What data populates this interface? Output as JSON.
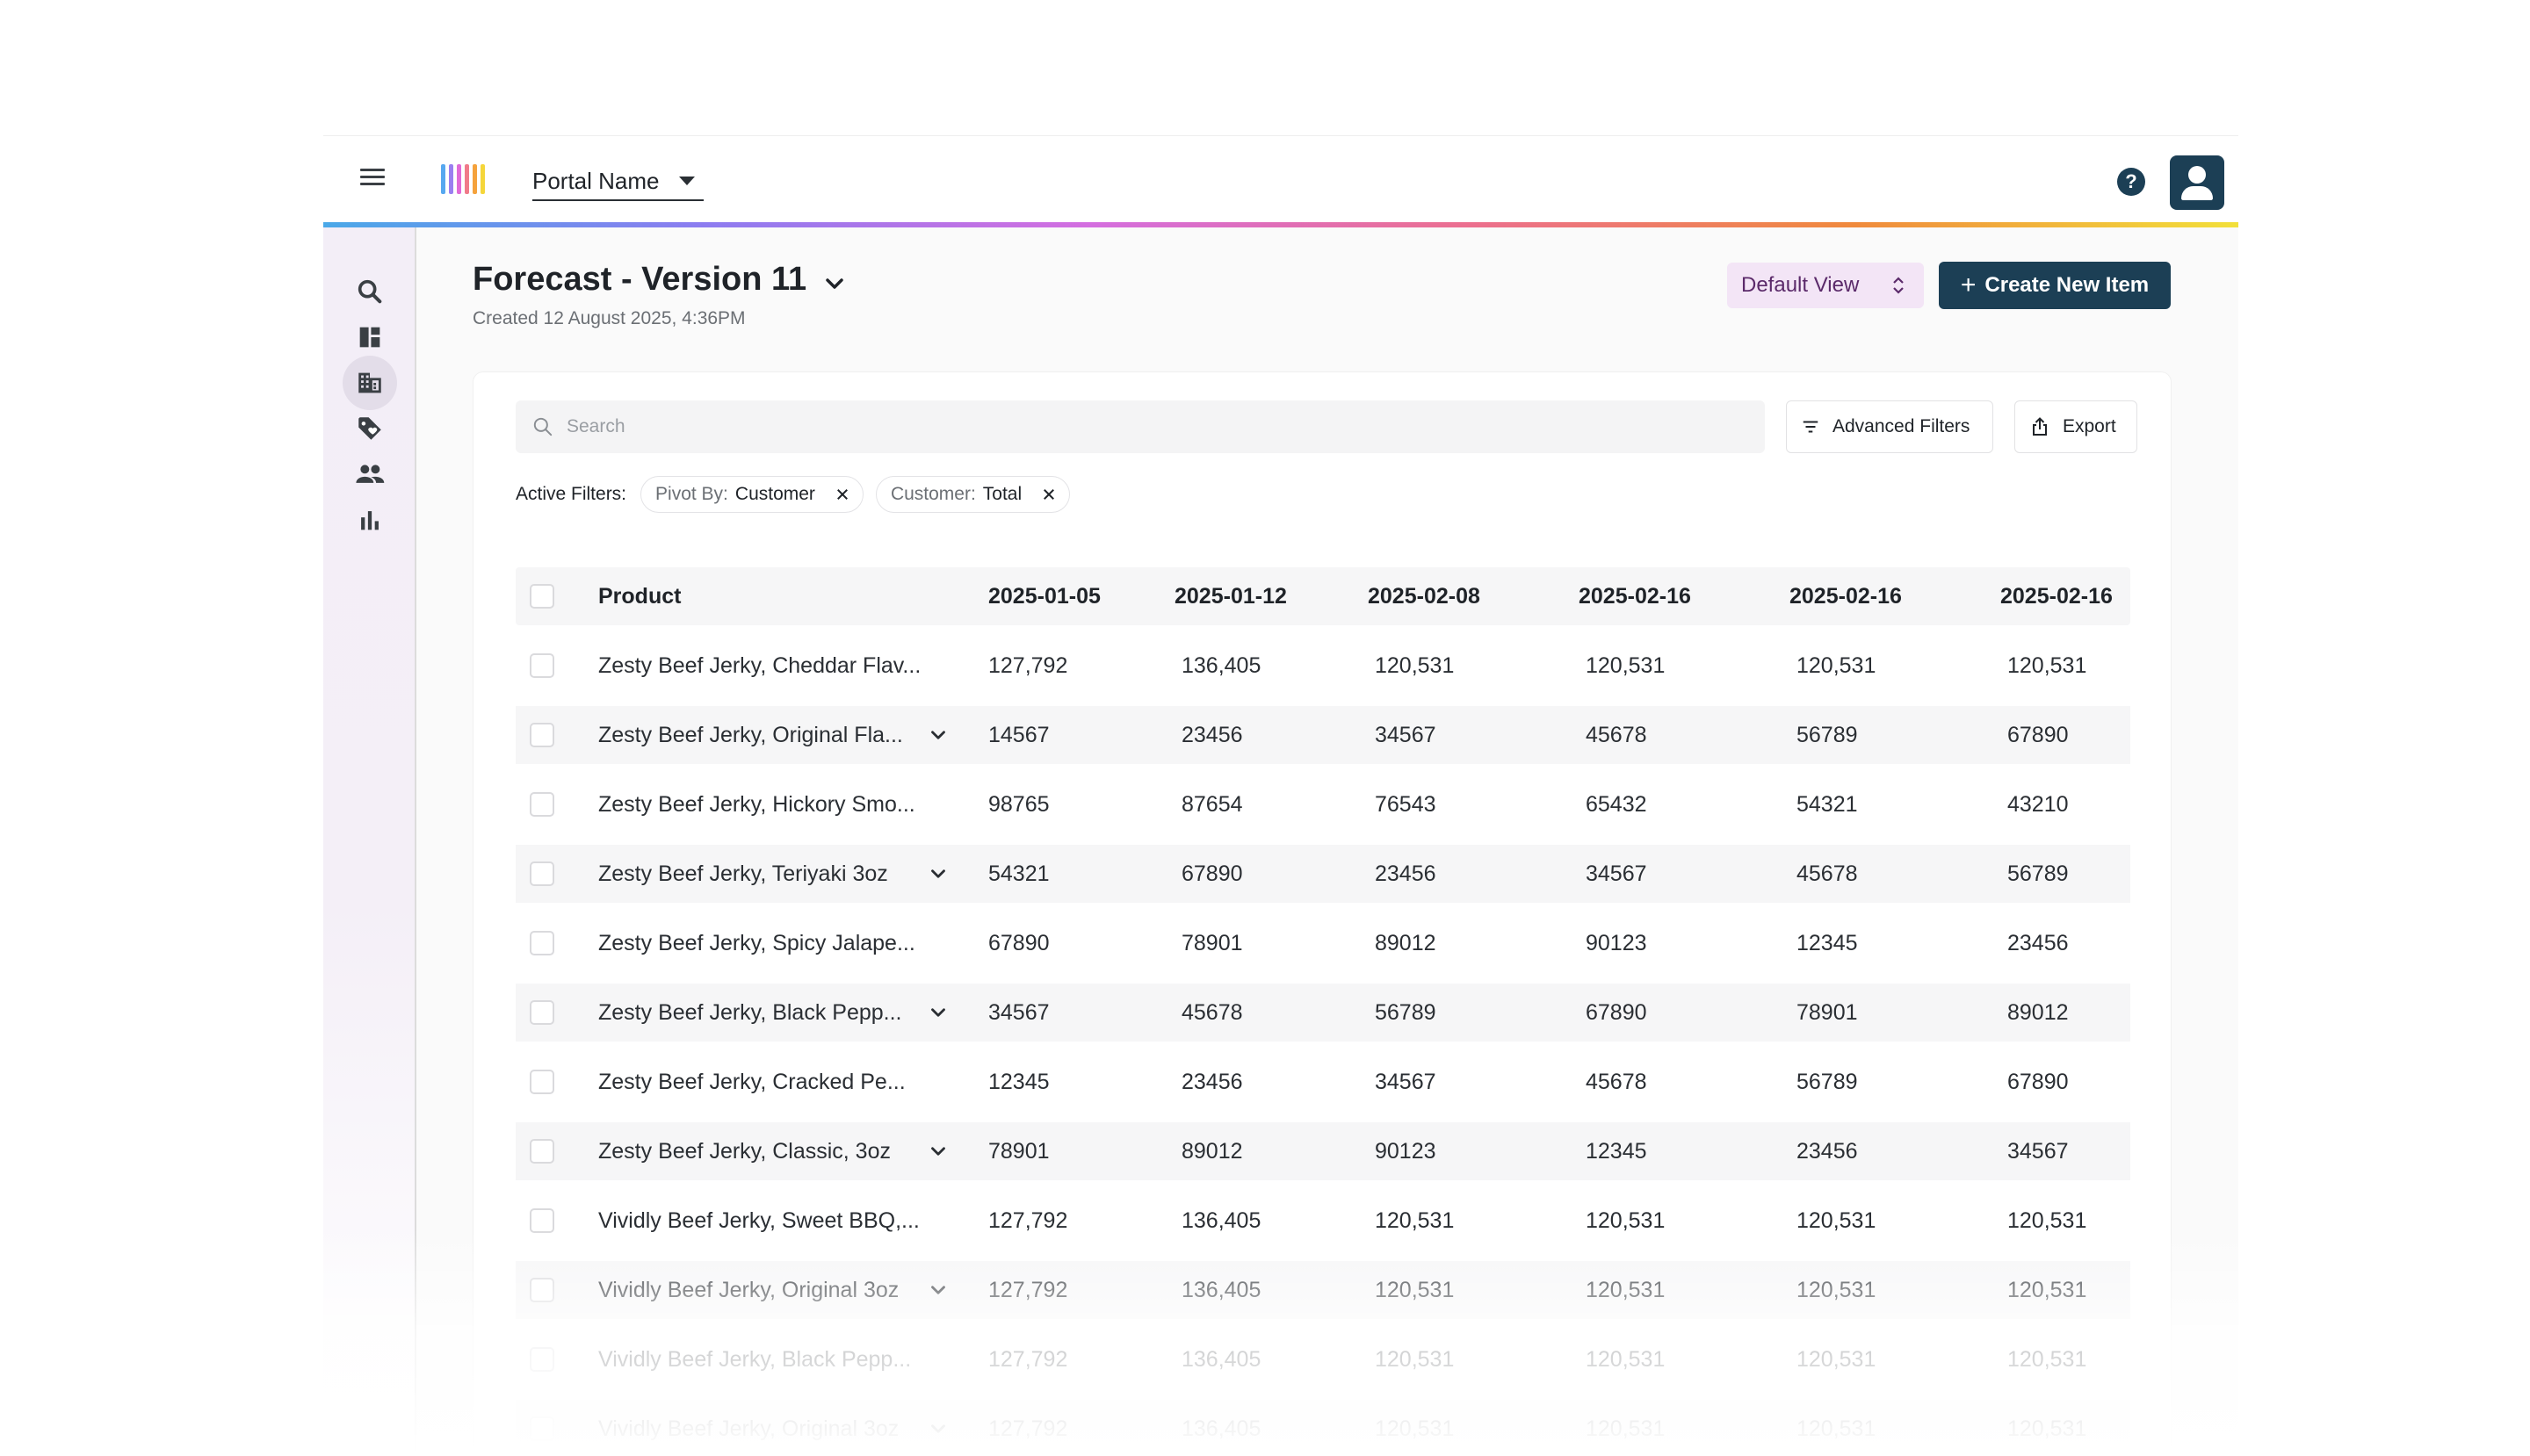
{
  "header": {
    "portal_name": "Portal Name",
    "logo_colors": [
      "#57a8f0",
      "#9b7ff0",
      "#e06ad8",
      "#f07a8a",
      "#f5a23c",
      "#f5d63a"
    ]
  },
  "page": {
    "title": "Forecast - Version 11",
    "subtitle": "Created 12 August 2025, 4:36PM",
    "view_selector": "Default View",
    "create_button": "Create New Item"
  },
  "sidebar": {
    "items": [
      {
        "icon": "search-icon",
        "active": false
      },
      {
        "icon": "dashboard-icon",
        "active": false
      },
      {
        "icon": "building-icon",
        "active": true
      },
      {
        "icon": "tag-icon",
        "active": false
      },
      {
        "icon": "people-icon",
        "active": false
      },
      {
        "icon": "bar-chart-icon",
        "active": false
      }
    ]
  },
  "toolbar": {
    "search_placeholder": "Search",
    "advanced_filters": "Advanced Filters",
    "export": "Export"
  },
  "filters": {
    "label": "Active Filters:",
    "chips": [
      {
        "key": "Pivot By:",
        "value": "Customer"
      },
      {
        "key": "Customer:",
        "value": "Total"
      }
    ]
  },
  "table": {
    "columns": [
      "Product",
      "2025-01-05",
      "2025-01-12",
      "2025-02-08",
      "2025-02-16",
      "2025-02-16",
      "2025-02-16"
    ],
    "rows": [
      {
        "product": "Zesty Beef Jerky, Cheddar Flav...",
        "expandable": false,
        "values": [
          "127,792",
          "136,405",
          "120,531",
          "120,531",
          "120,531",
          "120,531"
        ]
      },
      {
        "product": "Zesty Beef Jerky, Original Fla...",
        "expandable": true,
        "values": [
          "14567",
          "23456",
          "34567",
          "45678",
          "56789",
          "67890"
        ]
      },
      {
        "product": "Zesty Beef Jerky, Hickory Smo...",
        "expandable": false,
        "values": [
          "98765",
          "87654",
          "76543",
          "65432",
          "54321",
          "43210"
        ]
      },
      {
        "product": "Zesty Beef Jerky, Teriyaki 3oz",
        "expandable": true,
        "values": [
          "54321",
          "67890",
          "23456",
          "34567",
          "45678",
          "56789"
        ]
      },
      {
        "product": "Zesty Beef Jerky, Spicy Jalape...",
        "expandable": false,
        "values": [
          "67890",
          "78901",
          "89012",
          "90123",
          "12345",
          "23456"
        ]
      },
      {
        "product": "Zesty Beef Jerky, Black Pepp...",
        "expandable": true,
        "values": [
          "34567",
          "45678",
          "56789",
          "67890",
          "78901",
          "89012"
        ]
      },
      {
        "product": "Zesty Beef Jerky, Cracked Pe...",
        "expandable": false,
        "values": [
          "12345",
          "23456",
          "34567",
          "45678",
          "56789",
          "67890"
        ]
      },
      {
        "product": "Zesty Beef Jerky, Classic, 3oz",
        "expandable": true,
        "values": [
          "78901",
          "89012",
          "90123",
          "12345",
          "23456",
          "34567"
        ]
      },
      {
        "product": "Vividly Beef Jerky, Sweet BBQ,...",
        "expandable": false,
        "values": [
          "127,792",
          "136,405",
          "120,531",
          "120,531",
          "120,531",
          "120,531"
        ]
      },
      {
        "product": "Vividly Beef Jerky, Original 3oz",
        "expandable": true,
        "values": [
          "127,792",
          "136,405",
          "120,531",
          "120,531",
          "120,531",
          "120,531"
        ]
      },
      {
        "product": "Vividly Beef Jerky, Black Pepp...",
        "expandable": false,
        "values": [
          "127,792",
          "136,405",
          "120,531",
          "120,531",
          "120,531",
          "120,531"
        ]
      },
      {
        "product": "Vividly Beef Jerky, Original 3oz",
        "expandable": true,
        "values": [
          "127,792",
          "136,405",
          "120,531",
          "120,531",
          "120,531",
          "120,531"
        ]
      }
    ]
  },
  "colors": {
    "primary": "#1c3f55",
    "view_selector_bg": "#f3e5f6",
    "row_stripe": "#f6f6f7"
  }
}
